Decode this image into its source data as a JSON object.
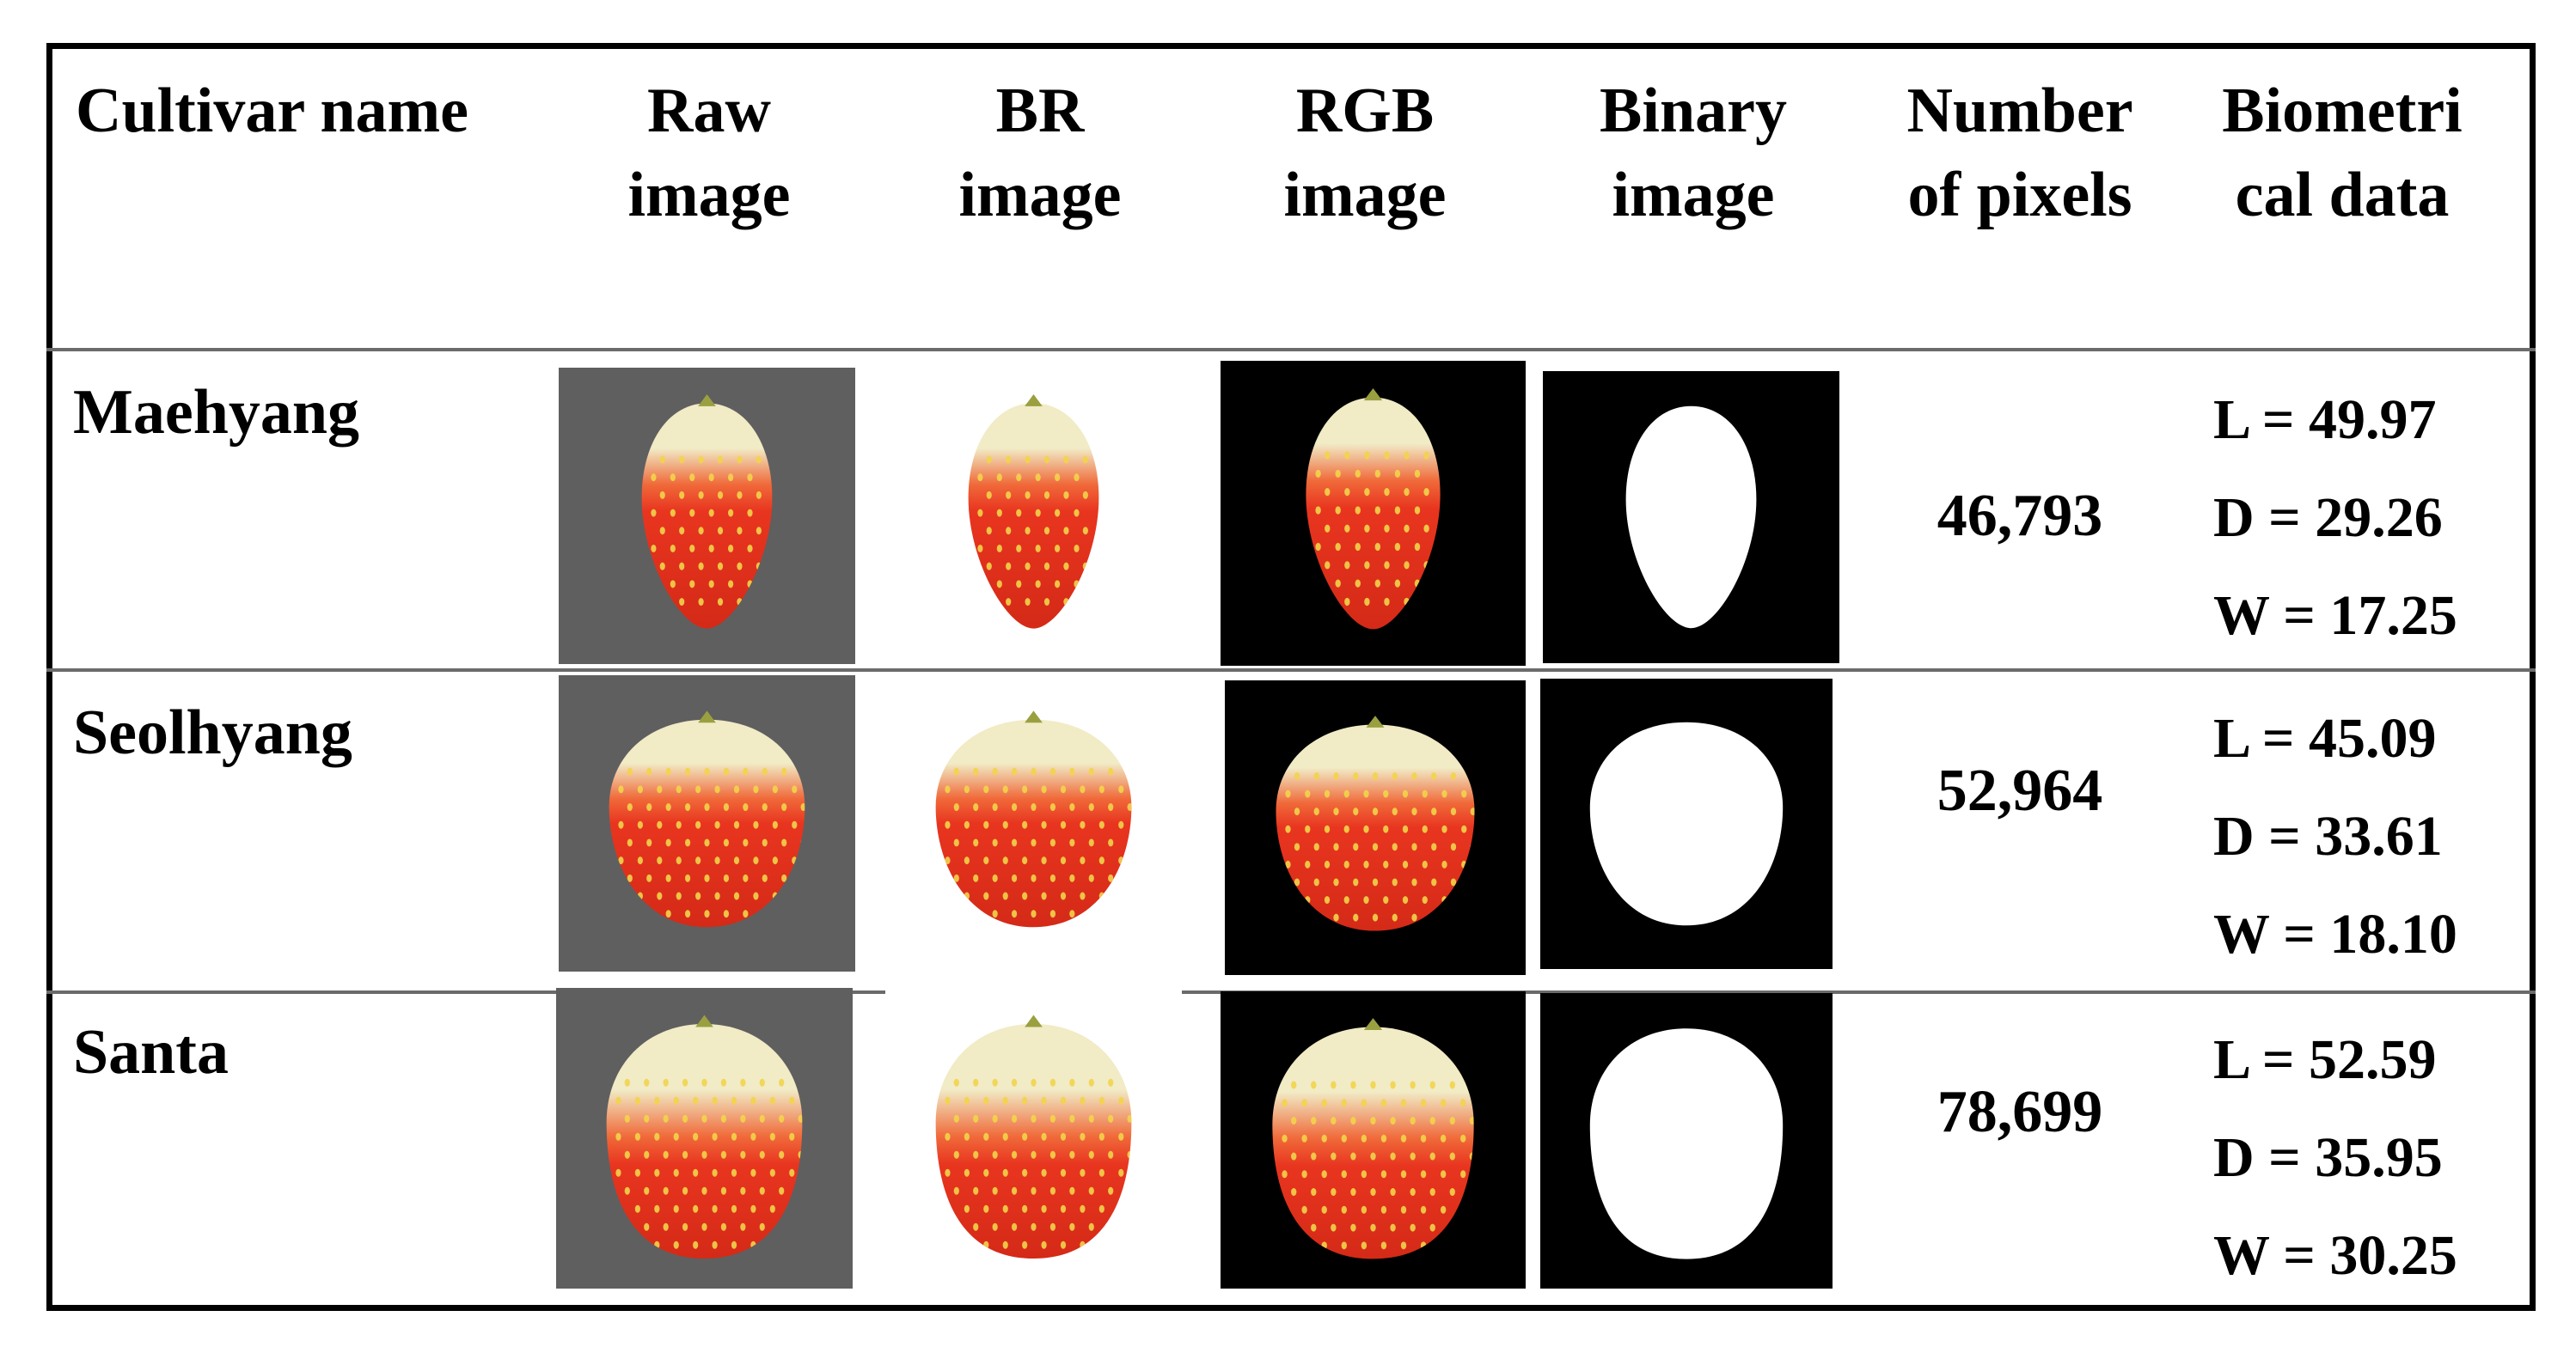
{
  "table": {
    "headers": {
      "cultivar": [
        "Cultivar name"
      ],
      "raw": [
        "Raw",
        "image"
      ],
      "br": [
        "BR",
        "image"
      ],
      "rgb": [
        "RGB",
        "image"
      ],
      "binary": [
        "Binary",
        "image"
      ],
      "pixels": [
        "Number",
        "of pixels"
      ],
      "biometrical": [
        "Biometri",
        "cal data"
      ]
    },
    "rows": [
      {
        "name": "Maehyang",
        "pixels": "46,793",
        "bio": [
          "L = 49.97",
          "D = 29.26",
          "W = 17.25"
        ]
      },
      {
        "name": "Seolhyang",
        "pixels": "52,964",
        "bio": [
          "L = 45.09",
          "D = 33.61",
          "W = 18.10"
        ]
      },
      {
        "name": "Santa",
        "pixels": "78,699",
        "bio": [
          "L = 52.59",
          "D = 35.95",
          "W = 30.25"
        ]
      }
    ]
  },
  "colors": {
    "raw_background": "#5f5f5f",
    "fruit_red": "#e8351f",
    "fruit_cream": "#f1ebc6",
    "black_background": "#000000",
    "mask_white": "#ffffff"
  }
}
